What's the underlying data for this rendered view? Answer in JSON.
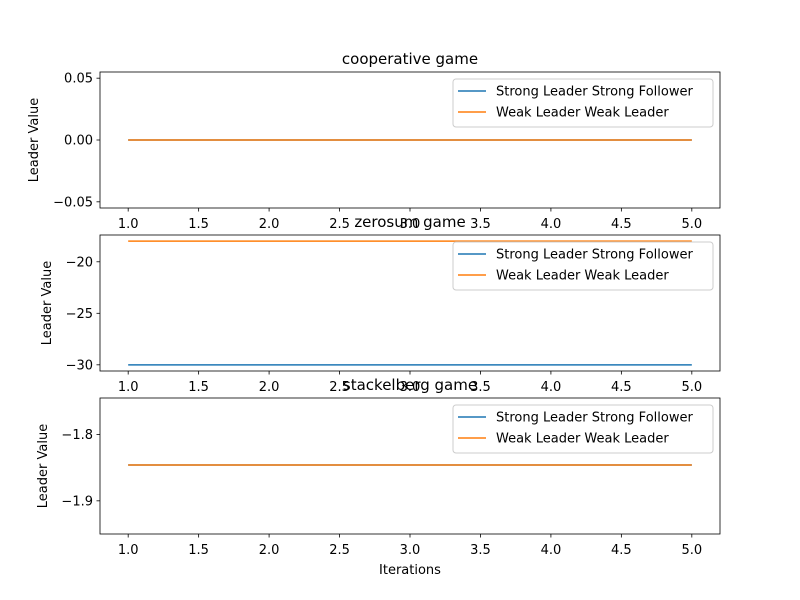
{
  "chart_data": [
    {
      "type": "line",
      "title": "cooperative game",
      "xlabel": "",
      "ylabel": "Leader Value",
      "xlim": [
        0.8,
        5.2
      ],
      "ylim": [
        -0.055,
        0.055
      ],
      "xticks": [
        1.0,
        1.5,
        2.0,
        2.5,
        3.0,
        3.5,
        4.0,
        4.5,
        5.0
      ],
      "xtick_labels": [
        "1.0",
        "1.5",
        "2.0",
        "2.5",
        "3.0",
        "3.5",
        "4.0",
        "4.5",
        "5.0"
      ],
      "yticks": [
        -0.05,
        0.0,
        0.05
      ],
      "ytick_labels": [
        "−0.05",
        "0.00",
        "0.05"
      ],
      "legend_position": "top-right",
      "series": [
        {
          "name": "Strong Leader Strong Follower",
          "color": "#1f77b4",
          "x": [
            1,
            2,
            3,
            4,
            5
          ],
          "y": [
            0.0,
            0.0,
            0.0,
            0.0,
            0.0
          ]
        },
        {
          "name": "Weak Leader Weak Leader",
          "color": "#ff7f0e",
          "x": [
            1,
            2,
            3,
            4,
            5
          ],
          "y": [
            0.0,
            0.0,
            0.0,
            0.0,
            0.0
          ]
        }
      ]
    },
    {
      "type": "line",
      "title": "zerosum game",
      "xlabel": "",
      "ylabel": "Leader Value",
      "xlim": [
        0.8,
        5.2
      ],
      "ylim": [
        -30.6,
        -17.4
      ],
      "xticks": [
        1.0,
        1.5,
        2.0,
        2.5,
        3.0,
        3.5,
        4.0,
        4.5,
        5.0
      ],
      "xtick_labels": [
        "1.0",
        "1.5",
        "2.0",
        "2.5",
        "3.0",
        "3.5",
        "4.0",
        "4.5",
        "5.0"
      ],
      "yticks": [
        -30,
        -25,
        -20
      ],
      "ytick_labels": [
        "−30",
        "−25",
        "−20"
      ],
      "legend_position": "top-right",
      "series": [
        {
          "name": "Strong Leader Strong Follower",
          "color": "#1f77b4",
          "x": [
            1,
            2,
            3,
            4,
            5
          ],
          "y": [
            -30.0,
            -30.0,
            -30.0,
            -30.0,
            -30.0
          ]
        },
        {
          "name": "Weak Leader Weak Leader",
          "color": "#ff7f0e",
          "x": [
            1,
            2,
            3,
            4,
            5
          ],
          "y": [
            -18.0,
            -18.0,
            -18.0,
            -18.0,
            -18.0
          ]
        }
      ]
    },
    {
      "type": "line",
      "title": "stackelberg game",
      "xlabel": "Iterations",
      "ylabel": "Leader Value",
      "xlim": [
        0.8,
        5.2
      ],
      "ylim": [
        -1.95,
        -1.745
      ],
      "xticks": [
        1.0,
        1.5,
        2.0,
        2.5,
        3.0,
        3.5,
        4.0,
        4.5,
        5.0
      ],
      "xtick_labels": [
        "1.0",
        "1.5",
        "2.0",
        "2.5",
        "3.0",
        "3.5",
        "4.0",
        "4.5",
        "5.0"
      ],
      "yticks": [
        -1.9,
        -1.8
      ],
      "ytick_labels": [
        "−1.9",
        "−1.8"
      ],
      "legend_position": "top-right",
      "series": [
        {
          "name": "Strong Leader Strong Follower",
          "color": "#1f77b4",
          "x": [
            1,
            2,
            3,
            4,
            5
          ],
          "y": [
            -1.846,
            -1.846,
            -1.846,
            -1.846,
            -1.846
          ]
        },
        {
          "name": "Weak Leader Weak Leader",
          "color": "#ff7f0e",
          "x": [
            1,
            2,
            3,
            4,
            5
          ],
          "y": [
            -1.846,
            -1.846,
            -1.846,
            -1.846,
            -1.846
          ]
        }
      ]
    }
  ]
}
